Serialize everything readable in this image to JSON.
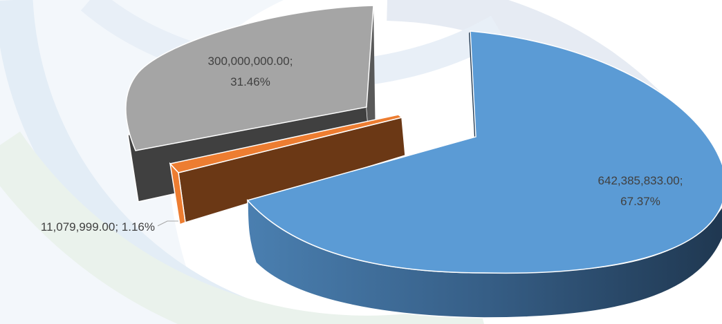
{
  "chart_data": {
    "type": "pie",
    "title": "",
    "slices": [
      {
        "value": 642385833.0,
        "percent": 67.37,
        "color": "#5b9bd5",
        "value_label": "642,385,833.00;",
        "percent_label": "67.37%"
      },
      {
        "value": 11079999.0,
        "percent": 1.16,
        "color": "#ed7d31",
        "label": "11,079,999.00; 1.16%"
      },
      {
        "value": 300000000.0,
        "percent": 31.46,
        "color": "#a5a5a5",
        "value_label": "300,000,000.00;",
        "percent_label": "31.46%"
      }
    ],
    "style": "3d-exploded"
  }
}
